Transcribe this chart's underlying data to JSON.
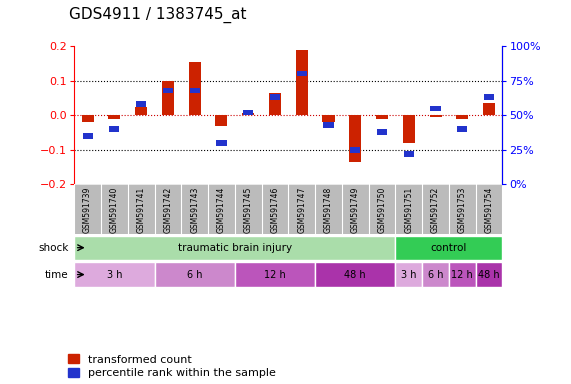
{
  "title": "GDS4911 / 1383745_at",
  "samples": [
    "GSM591739",
    "GSM591740",
    "GSM591741",
    "GSM591742",
    "GSM591743",
    "GSM591744",
    "GSM591745",
    "GSM591746",
    "GSM591747",
    "GSM591748",
    "GSM591749",
    "GSM591750",
    "GSM591751",
    "GSM591752",
    "GSM591753",
    "GSM591754"
  ],
  "red_values": [
    -0.02,
    -0.01,
    0.025,
    0.1,
    0.155,
    -0.03,
    0.005,
    0.065,
    0.19,
    -0.02,
    -0.135,
    -0.01,
    -0.08,
    -0.005,
    -0.01,
    0.035
  ],
  "blue_values_pct": [
    35,
    40,
    58,
    68,
    68,
    30,
    52,
    63,
    80,
    43,
    25,
    38,
    22,
    55,
    40,
    63
  ],
  "ylim_left": [
    -0.2,
    0.2
  ],
  "ylim_right": [
    0,
    100
  ],
  "yticks_left": [
    -0.2,
    -0.1,
    0.0,
    0.1,
    0.2
  ],
  "yticks_right": [
    0,
    25,
    50,
    75,
    100
  ],
  "ytick_labels_right": [
    "0%",
    "25%",
    "50%",
    "75%",
    "100%"
  ],
  "shock_groups": [
    {
      "label": "traumatic brain injury",
      "start": 0,
      "end": 12,
      "color": "#AADDAA"
    },
    {
      "label": "control",
      "start": 12,
      "end": 16,
      "color": "#33CC55"
    }
  ],
  "time_groups": [
    {
      "label": "3 h",
      "start": 0,
      "end": 3,
      "color": "#DDAADD"
    },
    {
      "label": "6 h",
      "start": 3,
      "end": 6,
      "color": "#CC88CC"
    },
    {
      "label": "12 h",
      "start": 6,
      "end": 9,
      "color": "#BB55BB"
    },
    {
      "label": "48 h",
      "start": 9,
      "end": 12,
      "color": "#AA33AA"
    },
    {
      "label": "3 h",
      "start": 12,
      "end": 13,
      "color": "#DDAADD"
    },
    {
      "label": "6 h",
      "start": 13,
      "end": 14,
      "color": "#CC88CC"
    },
    {
      "label": "12 h",
      "start": 14,
      "end": 15,
      "color": "#BB55BB"
    },
    {
      "label": "48 h",
      "start": 15,
      "end": 16,
      "color": "#AA33AA"
    }
  ],
  "red_color": "#CC2200",
  "blue_color": "#2233CC",
  "bg_color": "#FFFFFF",
  "sample_bg": "#BBBBBB",
  "title_fontsize": 11,
  "axis_fontsize": 8,
  "sample_fontsize": 5.5,
  "row_fontsize": 7.5,
  "legend_fontsize": 8
}
